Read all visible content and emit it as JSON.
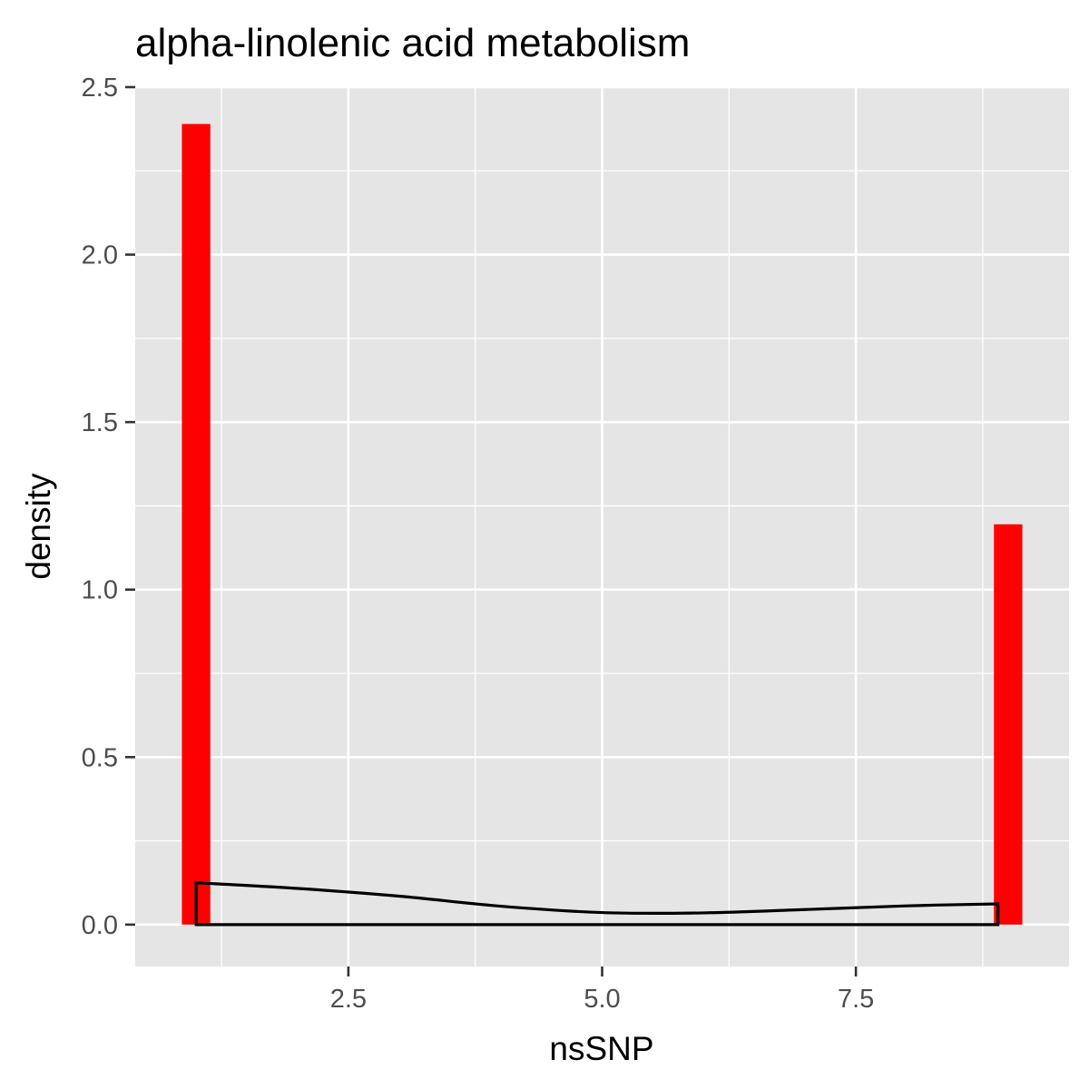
{
  "chart_data": {
    "type": "bar",
    "title": "alpha-linolenic acid metabolism",
    "xlabel": "nsSNP",
    "ylabel": "density",
    "xlim": [
      0.4,
      9.6
    ],
    "ylim": [
      -0.125,
      2.5
    ],
    "x_ticks": [
      2.5,
      5.0,
      7.5
    ],
    "x_tick_labels": [
      "2.5",
      "5.0",
      "7.5"
    ],
    "y_ticks": [
      0.0,
      0.5,
      1.0,
      1.5,
      2.0,
      2.5
    ],
    "y_tick_labels": [
      "0.0",
      "0.5",
      "1.0",
      "1.5",
      "2.0",
      "2.5"
    ],
    "grid": true,
    "bars": [
      {
        "x": 1.0,
        "width": 0.28,
        "density": 2.39
      },
      {
        "x": 9.0,
        "width": 0.28,
        "density": 1.195
      }
    ],
    "density_curve": {
      "x": [
        1.0,
        2.0,
        3.0,
        4.0,
        5.0,
        6.0,
        7.0,
        8.0,
        8.9
      ],
      "y": [
        0.125,
        0.108,
        0.085,
        0.055,
        0.036,
        0.035,
        0.045,
        0.056,
        0.062
      ]
    },
    "colors": {
      "panel_background": "#E5E5E5",
      "gridline": "#FFFFFF",
      "bar_fill": "#FF0000",
      "curve": "#000000"
    }
  }
}
